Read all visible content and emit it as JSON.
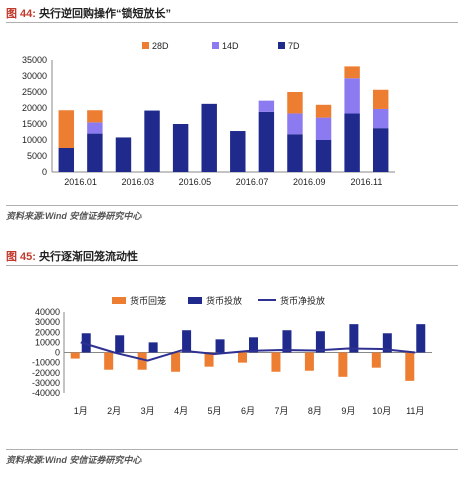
{
  "figure1": {
    "title_prefix": "图 44:",
    "title_body": "央行逆回购操作“锁短放长”",
    "source": "资料来源:Wind 安信证券研究中心"
  },
  "figure2": {
    "title_prefix": "图 45:",
    "title_body": "央行逐渐回笼流动性",
    "source": "资料来源:Wind 安信证券研究中心"
  },
  "colors": {
    "d28": "#ED7D31",
    "d14": "#8C7BF0",
    "d7": "#1F2A8C",
    "withdraw": "#ED7D31",
    "inject": "#1F2A8C",
    "net": "#2E3192",
    "title_red": "#C0392B"
  },
  "chart_data": [
    {
      "type": "bar",
      "stacked": true,
      "title": "",
      "ylim": [
        0,
        35000
      ],
      "yticks": [
        0,
        5000,
        10000,
        15000,
        20000,
        25000,
        30000,
        35000
      ],
      "categories": [
        "2016.01",
        "2016.02",
        "2016.03",
        "2016.04",
        "2016.05",
        "2016.06",
        "2016.07",
        "2016.08",
        "2016.09",
        "2016.10",
        "2016.11",
        "2016.12"
      ],
      "xtick_labels": [
        "2016.01",
        "",
        "2016.03",
        "",
        "2016.05",
        "",
        "2016.07",
        "",
        "2016.09",
        "",
        "2016.11",
        ""
      ],
      "legend_position": "top",
      "series": [
        {
          "name": "7D",
          "values": [
            7500,
            12000,
            10800,
            19200,
            15000,
            21300,
            12800,
            18800,
            11800,
            10000,
            18300,
            13700
          ]
        },
        {
          "name": "14D",
          "values": [
            0,
            3500,
            0,
            0,
            0,
            0,
            0,
            3500,
            6500,
            7000,
            11000,
            6000
          ]
        },
        {
          "name": "28D",
          "values": [
            11800,
            3800,
            0,
            0,
            0,
            0,
            0,
            0,
            6700,
            4000,
            3700,
            6000
          ]
        }
      ]
    },
    {
      "type": "bar",
      "title": "",
      "ylim": [
        -40000,
        40000
      ],
      "yticks": [
        -40000,
        -30000,
        -20000,
        -10000,
        0,
        10000,
        20000,
        30000,
        40000
      ],
      "categories": [
        "1月",
        "2月",
        "3月",
        "4月",
        "5月",
        "6月",
        "7月",
        "8月",
        "9月",
        "10月",
        "11月"
      ],
      "legend_position": "top",
      "series": [
        {
          "name": "货币回笼",
          "kind": "bar",
          "values": [
            -6000,
            -17000,
            -17000,
            -19000,
            -14000,
            -10000,
            -19000,
            -18000,
            -24000,
            -15000,
            -28000
          ]
        },
        {
          "name": "货币投放",
          "kind": "bar",
          "values": [
            19000,
            17000,
            10000,
            22000,
            13000,
            15000,
            22000,
            21000,
            28000,
            19000,
            28000
          ]
        },
        {
          "name": "货币净投放",
          "kind": "line",
          "values": [
            10000,
            0,
            -8000,
            2000,
            -1500,
            1500,
            2500,
            2000,
            4000,
            3500,
            0
          ]
        }
      ]
    }
  ]
}
